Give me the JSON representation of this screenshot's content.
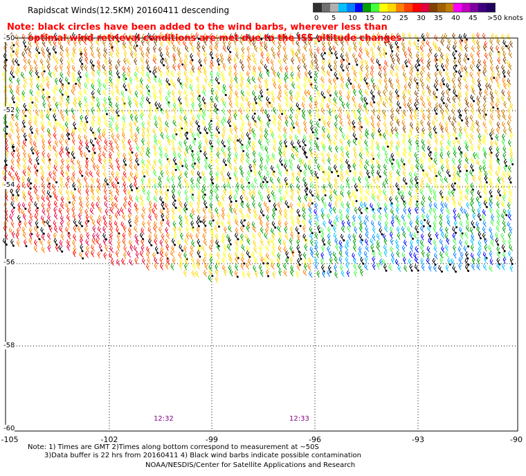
{
  "header": {
    "title": "Rapidscat Winds(12.5KM) 20160411 descending",
    "note_line1": "Note: black circles have been added to the wind barbs, wherever less than",
    "note_line2": "optimal wind retrieval conditions are met due to the ISS altitude changes."
  },
  "legend": {
    "labels": [
      "0",
      "5",
      "10",
      "15",
      "20",
      "25",
      "30",
      "35",
      "40",
      "45",
      ">50 knots"
    ],
    "colors": [
      "#303030",
      "#707070",
      "#b0b0b0",
      "#00c0ff",
      "#0080ff",
      "#0000ff",
      "#00a000",
      "#40ff40",
      "#ffff00",
      "#ffd700",
      "#ff8000",
      "#ff4000",
      "#ff0000",
      "#e00040",
      "#804000",
      "#a06000",
      "#c08000",
      "#ff00ff",
      "#c000c0",
      "#8000a0",
      "#400080",
      "#200060"
    ]
  },
  "axes": {
    "lon_ticks": [
      "-105",
      "-102",
      "-99",
      "-96",
      "-93",
      "-90"
    ],
    "lat_ticks": [
      "-50",
      "-52",
      "-54",
      "-56",
      "-58",
      "-60"
    ]
  },
  "times": {
    "left": "12:32",
    "right": "12:33"
  },
  "footer": {
    "line1": "Note: 1) Times are GMT 2)Times along bottom correspond to measurement at ~50S",
    "line2": "3)Data buffer is 22 hrs from 20160411 4) Black wind barbs indicate possible contamination",
    "line3": "NOAA/NESDIS/Center for Satellite Applications and Research"
  }
}
